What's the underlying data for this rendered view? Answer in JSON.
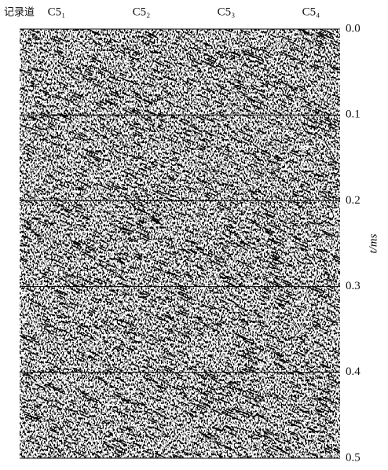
{
  "chart_data": {
    "type": "seismic",
    "trace_label": "记录道",
    "categories": [
      "C5₁",
      "C5₂",
      "C5₃",
      "C5₄"
    ],
    "y_label": "t/ms",
    "ylim": [
      0,
      0.5
    ],
    "yticks": [
      {
        "value": 0,
        "label": "0.0"
      },
      0.1,
      0.2,
      0.3,
      0.4,
      0.5
    ],
    "grid": true
  }
}
